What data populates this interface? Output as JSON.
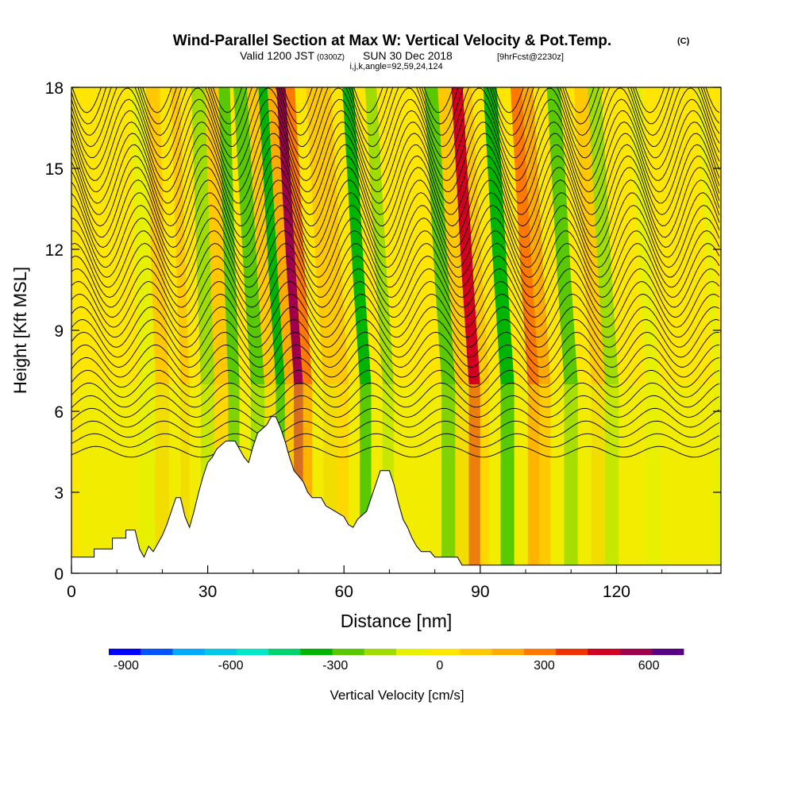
{
  "chart_data": {
    "type": "heatmap",
    "title": "Wind-Parallel Section at Max W: Vertical Velocity & Pot.Temp.",
    "title_units": "(C)",
    "subtitle": {
      "valid": "Valid 1200 JST",
      "zulu": "(0300Z)",
      "date": "SUN 30 Dec 2018",
      "forecast": "[9hrFcst@2230z]"
    },
    "grid_info": "i,j,k,angle=92,59,24,124",
    "xlabel": "Distance [nm]",
    "ylabel": "Height [Kft MSL]",
    "xlim": [
      0,
      143
    ],
    "ylim": [
      0,
      18
    ],
    "xticks": [
      0,
      30,
      60,
      90,
      120
    ],
    "yticks": [
      0,
      3,
      6,
      9,
      12,
      15,
      18
    ],
    "colorbar": {
      "label": "Vertical Velocity [cm/s]",
      "ticks": [
        -900,
        -600,
        -300,
        0,
        300,
        600
      ],
      "range": [
        -950,
        700
      ],
      "interval": 100,
      "colors": [
        "#0000ff",
        "#0055ff",
        "#00aaff",
        "#00c8e6",
        "#00e6c8",
        "#00d26e",
        "#00b400",
        "#5ac800",
        "#a0dc00",
        "#e6f000",
        "#ffe600",
        "#ffc800",
        "#ffaa00",
        "#ff7800",
        "#f03200",
        "#d2001e",
        "#a0004b",
        "#5a0087"
      ]
    },
    "vertical_velocity_columns": [
      {
        "x": 3,
        "w": 60
      },
      {
        "x": 9,
        "w": 50
      },
      {
        "x": 13,
        "w": 90
      },
      {
        "x": 17,
        "w": 40
      },
      {
        "x": 20,
        "w": 150
      },
      {
        "x": 23,
        "w": 50
      },
      {
        "x": 25,
        "w": 180
      },
      {
        "x": 27,
        "w": 70
      },
      {
        "x": 30,
        "w": -80
      },
      {
        "x": 33,
        "w": 200
      },
      {
        "x": 36,
        "w": -250
      },
      {
        "x": 38,
        "w": 120
      },
      {
        "x": 41,
        "w": -180
      },
      {
        "x": 44,
        "w": 150
      },
      {
        "x": 46,
        "w": -300
      },
      {
        "x": 48,
        "w": 250
      },
      {
        "x": 50,
        "w": 650
      },
      {
        "x": 52,
        "w": 350
      },
      {
        "x": 54,
        "w": 100
      },
      {
        "x": 57,
        "w": 150
      },
      {
        "x": 60,
        "w": 200
      },
      {
        "x": 62,
        "w": 80
      },
      {
        "x": 65,
        "w": -280
      },
      {
        "x": 67,
        "w": 60
      },
      {
        "x": 70,
        "w": -150
      },
      {
        "x": 72,
        "w": 90
      },
      {
        "x": 75,
        "w": 50
      },
      {
        "x": 78,
        "w": 130
      },
      {
        "x": 80,
        "w": 60
      },
      {
        "x": 83,
        "w": -220
      },
      {
        "x": 86,
        "w": 150
      },
      {
        "x": 89,
        "w": 550
      },
      {
        "x": 91,
        "w": 200
      },
      {
        "x": 93,
        "w": 50
      },
      {
        "x": 96,
        "w": -320
      },
      {
        "x": 99,
        "w": 80
      },
      {
        "x": 102,
        "w": 380
      },
      {
        "x": 104,
        "w": 250
      },
      {
        "x": 107,
        "w": 80
      },
      {
        "x": 110,
        "w": -200
      },
      {
        "x": 113,
        "w": 60
      },
      {
        "x": 116,
        "w": 150
      },
      {
        "x": 119,
        "w": -150
      },
      {
        "x": 122,
        "w": 80
      },
      {
        "x": 125,
        "w": 130
      },
      {
        "x": 128,
        "w": 40
      },
      {
        "x": 131,
        "w": 110
      },
      {
        "x": 134,
        "w": 50
      },
      {
        "x": 137,
        "w": 100
      },
      {
        "x": 140,
        "w": 60
      },
      {
        "x": 143,
        "w": 40
      }
    ],
    "terrain": [
      {
        "x": 0,
        "h": 0.6
      },
      {
        "x": 5,
        "h": 0.6
      },
      {
        "x": 5,
        "h": 0.9
      },
      {
        "x": 9,
        "h": 0.9
      },
      {
        "x": 9,
        "h": 1.3
      },
      {
        "x": 12,
        "h": 1.3
      },
      {
        "x": 12,
        "h": 1.6
      },
      {
        "x": 14,
        "h": 1.6
      },
      {
        "x": 15,
        "h": 0.9
      },
      {
        "x": 16,
        "h": 0.6
      },
      {
        "x": 17,
        "h": 1.0
      },
      {
        "x": 18,
        "h": 0.8
      },
      {
        "x": 19,
        "h": 1.1
      },
      {
        "x": 20,
        "h": 1.4
      },
      {
        "x": 21,
        "h": 1.8
      },
      {
        "x": 22,
        "h": 2.3
      },
      {
        "x": 23,
        "h": 2.8
      },
      {
        "x": 24,
        "h": 2.8
      },
      {
        "x": 25,
        "h": 2.1
      },
      {
        "x": 26,
        "h": 1.7
      },
      {
        "x": 26,
        "h": 1.7
      },
      {
        "x": 27,
        "h": 2.3
      },
      {
        "x": 28,
        "h": 3.0
      },
      {
        "x": 29,
        "h": 3.6
      },
      {
        "x": 30,
        "h": 4.1
      },
      {
        "x": 31,
        "h": 4.3
      },
      {
        "x": 32,
        "h": 4.6
      },
      {
        "x": 34,
        "h": 4.9
      },
      {
        "x": 36,
        "h": 4.9
      },
      {
        "x": 37,
        "h": 4.6
      },
      {
        "x": 38,
        "h": 4.3
      },
      {
        "x": 39,
        "h": 4.1
      },
      {
        "x": 40,
        "h": 4.7
      },
      {
        "x": 41,
        "h": 5.2
      },
      {
        "x": 43,
        "h": 5.5
      },
      {
        "x": 44,
        "h": 5.8
      },
      {
        "x": 45,
        "h": 5.8
      },
      {
        "x": 46,
        "h": 5.4
      },
      {
        "x": 47,
        "h": 4.9
      },
      {
        "x": 48,
        "h": 4.3
      },
      {
        "x": 49,
        "h": 3.8
      },
      {
        "x": 50,
        "h": 3.6
      },
      {
        "x": 51,
        "h": 3.4
      },
      {
        "x": 52,
        "h": 3.0
      },
      {
        "x": 53,
        "h": 2.8
      },
      {
        "x": 55,
        "h": 2.8
      },
      {
        "x": 56,
        "h": 2.5
      },
      {
        "x": 58,
        "h": 2.3
      },
      {
        "x": 60,
        "h": 2.1
      },
      {
        "x": 61,
        "h": 1.8
      },
      {
        "x": 62,
        "h": 1.7
      },
      {
        "x": 63,
        "h": 2.0
      },
      {
        "x": 65,
        "h": 2.3
      },
      {
        "x": 66,
        "h": 2.8
      },
      {
        "x": 67,
        "h": 3.3
      },
      {
        "x": 68,
        "h": 3.8
      },
      {
        "x": 70,
        "h": 3.8
      },
      {
        "x": 71,
        "h": 3.3
      },
      {
        "x": 72,
        "h": 2.6
      },
      {
        "x": 73,
        "h": 2.0
      },
      {
        "x": 74,
        "h": 1.7
      },
      {
        "x": 75,
        "h": 1.3
      },
      {
        "x": 76,
        "h": 1.0
      },
      {
        "x": 77,
        "h": 0.8
      },
      {
        "x": 79,
        "h": 0.8
      },
      {
        "x": 80,
        "h": 0.6
      },
      {
        "x": 82,
        "h": 0.6
      },
      {
        "x": 85,
        "h": 0.6
      },
      {
        "x": 86,
        "h": 0.3
      },
      {
        "x": 90,
        "h": 0.3
      },
      {
        "x": 143,
        "h": 0.3
      }
    ]
  }
}
